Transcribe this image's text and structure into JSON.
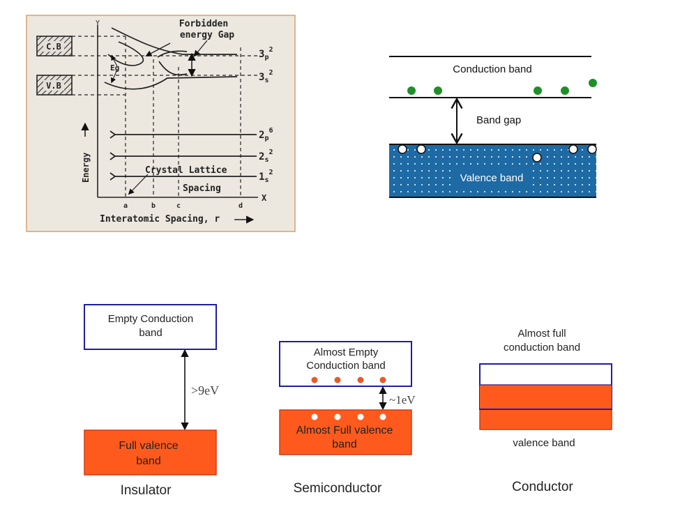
{
  "panel_energy": {
    "cb_label": "C.B",
    "vb_label": "V.B",
    "title_line1": "Forbidden",
    "title_line2": "energy Gap",
    "eg_label": "Eg",
    "y_letter": "Y",
    "x_letter": "X",
    "levels": [
      {
        "main": "3",
        "sub": "p",
        "sup": "2"
      },
      {
        "main": "3",
        "sub": "s",
        "sup": "2"
      },
      {
        "main": "2",
        "sub": "p",
        "sup": "6"
      },
      {
        "main": "2",
        "sub": "s",
        "sup": "2"
      },
      {
        "main": "1",
        "sub": "s",
        "sup": "2"
      }
    ],
    "lattice_line1": "Crystal Lattice",
    "lattice_line2": "Spacing",
    "ticks": [
      "a",
      "b",
      "c",
      "d"
    ],
    "y_axis_label": "Energy",
    "x_axis_label": "Interatomic Spacing, r"
  },
  "panel_bandgap": {
    "conduction_label": "Conduction band",
    "gap_label": "Band gap",
    "valence_label": "Valence band"
  },
  "insulator": {
    "top_label_1": "Empty Conduction",
    "top_label_2": "band",
    "gap": ">9eV",
    "bottom_label_1": "Full valence",
    "bottom_label_2": "band",
    "caption": "Insulator"
  },
  "semiconductor": {
    "top_label_1": "Almost Empty",
    "top_label_2": "Conduction band",
    "gap": "~1eV",
    "bottom_label_1": "Almost Full valence",
    "bottom_label_2": "band",
    "caption": "Semiconductor"
  },
  "conductor": {
    "top_label_1": "Almost full",
    "top_label_2": "conduction band",
    "bottom_label": "valence band",
    "caption": "Conductor"
  },
  "colors": {
    "panel_bg": "#ece8e0",
    "panel_border": "#d9a06a",
    "band_orange": "#ff5a1e",
    "box_blue": "#1e1ea0",
    "valence_blue": "#1d6aa4",
    "electron_green": "#1f8f2a",
    "electron_red": "#e85a2a"
  }
}
